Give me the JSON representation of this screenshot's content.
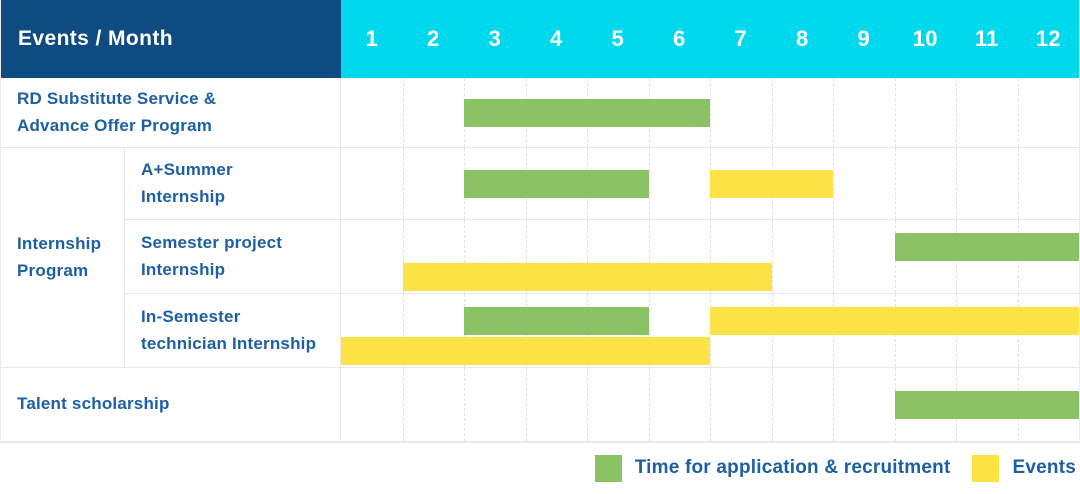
{
  "header": {
    "label": "Events / Month",
    "months": [
      "1",
      "2",
      "3",
      "4",
      "5",
      "6",
      "7",
      "8",
      "9",
      "10",
      "11",
      "12"
    ]
  },
  "colors": {
    "navy": "#0d4b80",
    "cyan": "#00d8ee",
    "text_blue": "#1d5fa4",
    "recruitment": "#8bc265",
    "event": "#fde345",
    "grid": "#e8e8e8"
  },
  "legend": [
    {
      "key": "recruitment",
      "label": "Time for application & recruitment"
    },
    {
      "key": "event",
      "label": "Events"
    }
  ],
  "chart_data": {
    "type": "gantt",
    "title": "Events / Month",
    "x_categories": [
      "1",
      "2",
      "3",
      "4",
      "5",
      "6",
      "7",
      "8",
      "9",
      "10",
      "11",
      "12"
    ],
    "xlim": [
      1,
      12
    ],
    "grid": "dashed-vertical",
    "legend_position": "bottom-right",
    "series_legend": {
      "recruitment": "Time for application & recruitment",
      "event": "Events"
    },
    "groups": [
      {
        "label": "Internship\nProgram",
        "start_row": 1,
        "span": 3
      }
    ],
    "rows": [
      {
        "label": "RD Substitute Service &\nAdvance Offer Program",
        "grouped": false,
        "bars": [
          {
            "type": "recruitment",
            "start_month": 3,
            "end_month": 6,
            "lane": "center"
          }
        ]
      },
      {
        "label": "A+Summer\nInternship",
        "grouped": true,
        "bars": [
          {
            "type": "recruitment",
            "start_month": 3,
            "end_month": 5,
            "lane": "center"
          },
          {
            "type": "event",
            "start_month": 7,
            "end_month": 8,
            "lane": "center"
          }
        ]
      },
      {
        "label": "Semester project\nInternship",
        "grouped": true,
        "bars": [
          {
            "type": "recruitment",
            "start_month": 10,
            "end_month": 12,
            "lane": "top"
          },
          {
            "type": "event",
            "start_month": 2,
            "end_month": 7,
            "lane": "bottom"
          }
        ]
      },
      {
        "label": "In-Semester\ntechnician Internship",
        "grouped": true,
        "bars": [
          {
            "type": "recruitment",
            "start_month": 3,
            "end_month": 5,
            "lane": "top"
          },
          {
            "type": "event",
            "start_month": 7,
            "end_month": 12,
            "lane": "top"
          },
          {
            "type": "event",
            "start_month": 1,
            "end_month": 6,
            "lane": "bottom"
          }
        ]
      },
      {
        "label": "Talent scholarship",
        "grouped": false,
        "bars": [
          {
            "type": "recruitment",
            "start_month": 10,
            "end_month": 12,
            "lane": "center"
          }
        ]
      }
    ]
  }
}
